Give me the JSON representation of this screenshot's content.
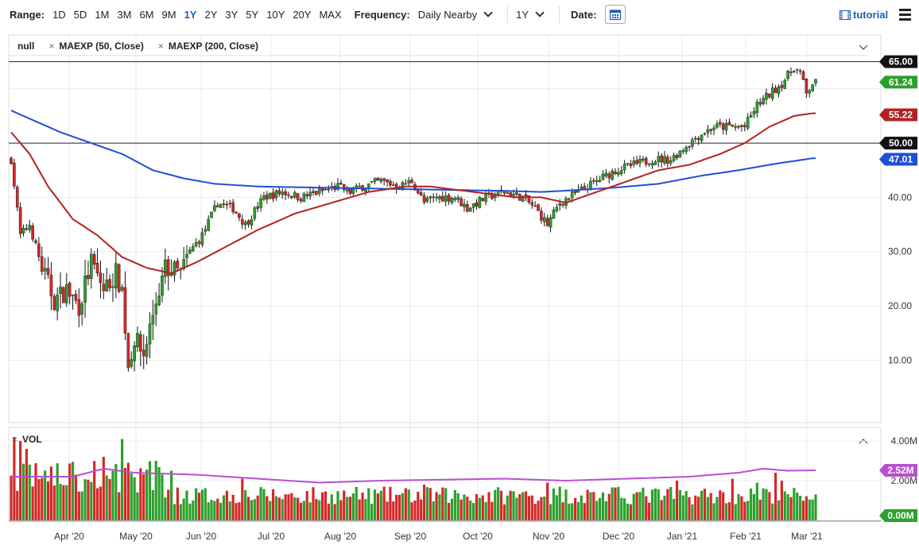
{
  "toolbar": {
    "range_label": "Range:",
    "ranges": [
      "1D",
      "5D",
      "1M",
      "3M",
      "6M",
      "9M",
      "1Y",
      "2Y",
      "3Y",
      "5Y",
      "10Y",
      "20Y",
      "MAX"
    ],
    "active_range": "1Y",
    "frequency_label": "Frequency:",
    "frequency_value": "Daily Nearby",
    "period_value": "1Y",
    "date_label": "Date:",
    "tutorial_label": "tutorial"
  },
  "legend": {
    "symbol": "null",
    "study1": "MAEXP (50, Close)",
    "study2": "MAEXP (200, Close)",
    "vol_label": "VOL"
  },
  "colors": {
    "up": "#2ca02c",
    "down": "#d62728",
    "ma50": "#b22222",
    "ma200": "#1e4fd8",
    "volavg": "#b84fd0"
  },
  "chart_data": {
    "type": "candlestick",
    "x_tick_labels": [
      "Apr '20",
      "May '20",
      "Jun '20",
      "Jul '20",
      "Aug '20",
      "Sep '20",
      "Oct '20",
      "Nov '20",
      "Dec '20",
      "Jan '21",
      "Feb '21",
      "Mar '21"
    ],
    "price_axis": {
      "ticks": [
        "10.00",
        "20.00",
        "30.00",
        "40.00"
      ],
      "range": [
        2,
        67
      ]
    },
    "horizontal_lines": [
      65.0,
      50.0
    ],
    "price_badges": [
      {
        "label": "65.00",
        "value": 65.0,
        "kind": "line"
      },
      {
        "label": "61.24",
        "value": 61.24,
        "kind": "last"
      },
      {
        "label": "55.22",
        "value": 55.22,
        "kind": "ma50"
      },
      {
        "label": "50.00",
        "value": 50.0,
        "kind": "line"
      },
      {
        "label": "47.01",
        "value": 47.01,
        "kind": "ma200"
      }
    ],
    "volume_axis": {
      "ticks": [
        "4.00M",
        "2.00M"
      ],
      "range": [
        0,
        4.2
      ]
    },
    "volume_badges": [
      {
        "label": "2.52M",
        "value": 2.52,
        "kind": "avg"
      },
      {
        "label": "0.00M",
        "value": 0,
        "kind": "zero"
      }
    ],
    "price_anchors": [
      [
        0,
        47
      ],
      [
        3,
        33
      ],
      [
        6,
        35
      ],
      [
        10,
        27
      ],
      [
        14,
        21
      ],
      [
        18,
        23
      ],
      [
        22,
        20
      ],
      [
        26,
        28
      ],
      [
        30,
        23
      ],
      [
        34,
        26
      ],
      [
        36,
        23
      ],
      [
        38,
        9
      ],
      [
        40,
        14
      ],
      [
        43,
        11
      ],
      [
        47,
        21
      ],
      [
        50,
        27
      ],
      [
        55,
        26
      ],
      [
        58,
        30
      ],
      [
        62,
        33
      ],
      [
        67,
        39
      ],
      [
        72,
        38
      ],
      [
        76,
        35
      ],
      [
        82,
        40
      ],
      [
        88,
        41
      ],
      [
        94,
        40
      ],
      [
        100,
        41
      ],
      [
        106,
        42
      ],
      [
        110,
        41
      ],
      [
        114,
        42
      ],
      [
        120,
        43
      ],
      [
        126,
        42
      ],
      [
        130,
        43
      ],
      [
        134,
        39
      ],
      [
        138,
        40
      ],
      [
        144,
        40
      ],
      [
        148,
        38
      ],
      [
        154,
        40
      ],
      [
        160,
        41
      ],
      [
        166,
        40
      ],
      [
        170,
        38
      ],
      [
        174,
        35
      ],
      [
        178,
        39
      ],
      [
        184,
        41
      ],
      [
        190,
        43
      ],
      [
        196,
        45
      ],
      [
        202,
        46
      ],
      [
        208,
        47
      ],
      [
        214,
        47
      ],
      [
        218,
        49
      ],
      [
        222,
        51
      ],
      [
        228,
        53
      ],
      [
        234,
        53
      ],
      [
        238,
        53
      ],
      [
        242,
        57
      ],
      [
        246,
        59
      ],
      [
        250,
        61
      ],
      [
        254,
        64
      ],
      [
        256,
        63
      ],
      [
        258,
        59
      ],
      [
        260,
        61
      ]
    ],
    "ma50_anchors": [
      [
        0,
        52
      ],
      [
        6,
        48
      ],
      [
        12,
        42
      ],
      [
        20,
        36
      ],
      [
        28,
        33
      ],
      [
        36,
        29
      ],
      [
        44,
        27
      ],
      [
        52,
        26
      ],
      [
        60,
        28
      ],
      [
        70,
        31
      ],
      [
        80,
        34
      ],
      [
        92,
        37
      ],
      [
        104,
        39
      ],
      [
        116,
        41
      ],
      [
        128,
        42
      ],
      [
        136,
        42
      ],
      [
        150,
        41
      ],
      [
        164,
        40
      ],
      [
        172,
        40
      ],
      [
        180,
        39
      ],
      [
        190,
        41
      ],
      [
        200,
        43
      ],
      [
        210,
        45
      ],
      [
        220,
        46
      ],
      [
        230,
        48
      ],
      [
        238,
        50
      ],
      [
        246,
        53
      ],
      [
        254,
        55
      ],
      [
        260,
        55.5
      ]
    ],
    "ma200_anchors": [
      [
        0,
        56
      ],
      [
        8,
        54
      ],
      [
        16,
        52
      ],
      [
        26,
        50
      ],
      [
        36,
        48
      ],
      [
        46,
        45
      ],
      [
        56,
        43.5
      ],
      [
        66,
        42.5
      ],
      [
        80,
        42
      ],
      [
        100,
        41.8
      ],
      [
        120,
        41.6
      ],
      [
        140,
        41.4
      ],
      [
        160,
        41.2
      ],
      [
        172,
        41.0
      ],
      [
        182,
        41.3
      ],
      [
        196,
        41.8
      ],
      [
        210,
        42.5
      ],
      [
        224,
        44
      ],
      [
        236,
        45
      ],
      [
        248,
        46.2
      ],
      [
        260,
        47.2
      ]
    ],
    "vol_avg_anchors": [
      [
        0,
        2.2
      ],
      [
        20,
        2.2
      ],
      [
        30,
        2.6
      ],
      [
        40,
        2.4
      ],
      [
        60,
        2.3
      ],
      [
        80,
        2.1
      ],
      [
        100,
        1.9
      ],
      [
        120,
        2.0
      ],
      [
        140,
        2.05
      ],
      [
        160,
        2.1
      ],
      [
        180,
        2.0
      ],
      [
        200,
        2.1
      ],
      [
        220,
        2.2
      ],
      [
        236,
        2.4
      ],
      [
        244,
        2.6
      ],
      [
        252,
        2.5
      ],
      [
        260,
        2.52
      ]
    ],
    "volume_spikes": [
      [
        1,
        4.2
      ],
      [
        3,
        4.0
      ],
      [
        5,
        3.6
      ],
      [
        30,
        3.2
      ],
      [
        36,
        4.1
      ],
      [
        38,
        2.9
      ],
      [
        47,
        3.0
      ],
      [
        52,
        2.5
      ],
      [
        75,
        2.1
      ],
      [
        134,
        1.8
      ],
      [
        174,
        1.9
      ],
      [
        178,
        1.7
      ],
      [
        216,
        2.0
      ],
      [
        234,
        2.1
      ],
      [
        242,
        1.9
      ],
      [
        248,
        2.4
      ],
      [
        250,
        2.0
      ]
    ]
  }
}
